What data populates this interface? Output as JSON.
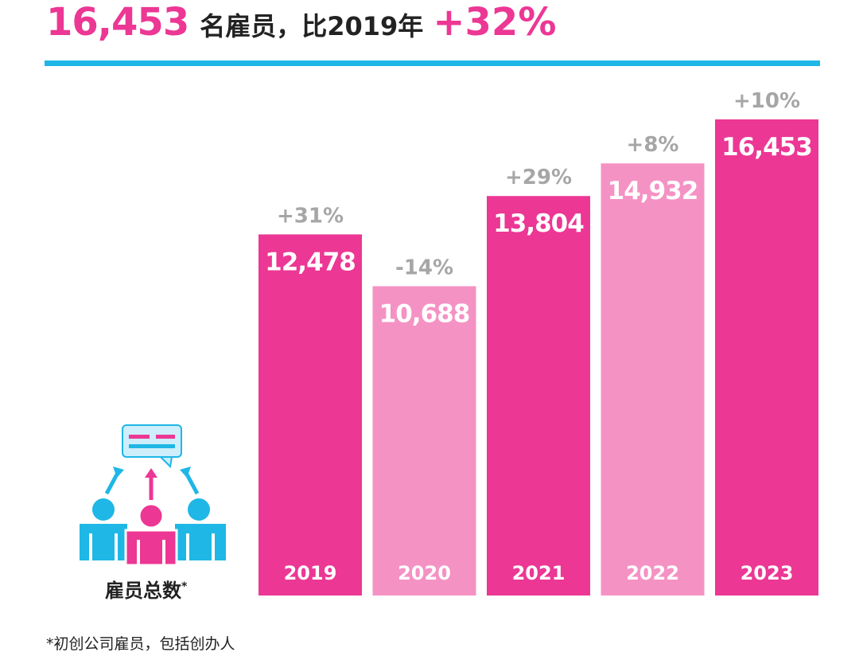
{
  "header": {
    "total": "16,453",
    "text": "名雇员，比2019年",
    "change": "+32%"
  },
  "icon_label": "雇员总数",
  "icon_label_mark": "*",
  "footnote": "*初创公司雇员，包括创办人",
  "colors": {
    "accent": "#ec3794",
    "light": "#f592c4",
    "rule": "#1eb7e6",
    "muted": "#a6a6a6"
  },
  "chart_data": {
    "type": "bar",
    "categories": [
      "2019",
      "2020",
      "2021",
      "2022",
      "2023"
    ],
    "values": [
      12478,
      10688,
      13804,
      14932,
      16453
    ],
    "value_labels": [
      "12,478",
      "10,688",
      "13,804",
      "14,932",
      "16,453"
    ],
    "changes": [
      "+31%",
      "-14%",
      "+29%",
      "+8%",
      "+10%"
    ],
    "bar_colors": [
      "#ec3794",
      "#f592c4",
      "#ec3794",
      "#f592c4",
      "#ec3794"
    ],
    "title": "",
    "xlabel": "",
    "ylabel": "",
    "grid": false
  }
}
